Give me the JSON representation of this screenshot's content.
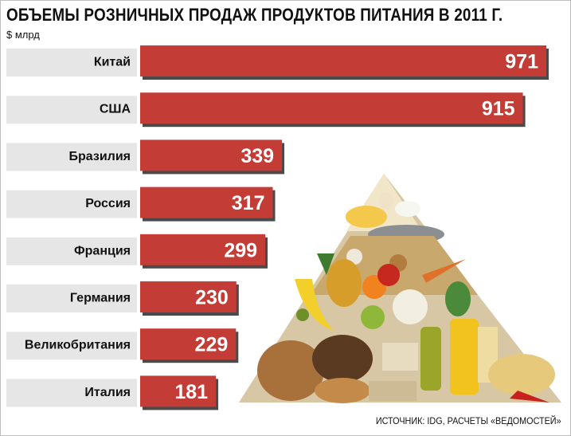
{
  "title": "ОБЪЕМЫ РОЗНИЧНЫХ ПРОДАЖ ПРОДУКТОВ ПИТАНИЯ В 2011 Г.",
  "unit": "$ млрд",
  "source": "ИСТОЧНИК: IDG, РАСЧЕТЫ «ВЕДОМОСТЕЙ»",
  "colors": {
    "bar": "#c33c36",
    "bar_shadow": "#4a4a4a",
    "label_bg": "#e6e6e6",
    "value_text": "#ffffff"
  },
  "illustration": "food-pyramid-image",
  "chart_data": {
    "type": "bar",
    "orientation": "horizontal",
    "title": "ОБЪЕМЫ РОЗНИЧНЫХ ПРОДАЖ ПРОДУКТОВ ПИТАНИЯ В 2011 Г.",
    "ylabel": "$ млрд",
    "categories": [
      "Китай",
      "США",
      "Бразилия",
      "Россия",
      "Франция",
      "Германия",
      "Великобритания",
      "Италия"
    ],
    "values": [
      971,
      915,
      339,
      317,
      299,
      230,
      229,
      181
    ],
    "xlim": [
      0,
      1000
    ],
    "grid": false,
    "legend": "none"
  }
}
